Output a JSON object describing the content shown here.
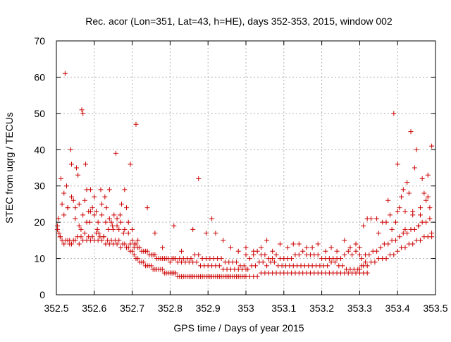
{
  "chart_data": {
    "type": "scatter",
    "title": "Rec. acor (Lon=351, Lat=43, h=HE), days 352-353, 2015, window 002",
    "xlabel": "GPS time / Days of year 2015",
    "ylabel": "STEC from uqrg / TECUs",
    "xlim": [
      352.5,
      353.5
    ],
    "ylim": [
      0,
      70
    ],
    "x_ticks": [
      352.5,
      352.6,
      352.7,
      352.8,
      352.9,
      353.0,
      353.1,
      353.2,
      353.3,
      353.4,
      353.5
    ],
    "x_tick_labels": [
      "352.5",
      "352.6",
      "352.7",
      "352.8",
      "352.9",
      "353",
      "353.1",
      "353.2",
      "353.3",
      "353.4",
      "353.5"
    ],
    "y_ticks": [
      0,
      10,
      20,
      30,
      40,
      50,
      60,
      70
    ],
    "y_tick_labels": [
      "0",
      "10",
      "20",
      "30",
      "40",
      "50",
      "60",
      "70"
    ],
    "grid": true,
    "marker": "+",
    "color": "#cc0000",
    "series": [
      {
        "x": [
          352.503,
          352.505,
          352.507,
          352.51,
          352.512,
          352.515,
          352.52,
          352.523,
          352.527,
          352.53,
          352.535,
          352.538,
          352.54,
          352.545,
          352.55,
          352.553,
          352.557,
          352.56,
          352.565,
          352.567,
          352.57,
          352.575,
          352.577,
          352.58,
          352.585,
          352.588,
          352.59,
          352.595,
          352.6,
          352.605,
          352.608,
          352.612,
          352.617,
          352.62,
          352.625,
          352.628,
          352.632,
          352.637,
          352.64,
          352.645,
          352.648,
          352.652,
          352.657,
          352.66,
          352.665,
          352.668,
          352.672,
          352.677,
          352.68,
          352.685,
          352.69,
          352.695,
          352.7,
          352.705,
          352.71,
          352.715
        ],
        "y": [
          19,
          21,
          17,
          16,
          32,
          25,
          22,
          61,
          30,
          24,
          15,
          40,
          36,
          26,
          24,
          35,
          33,
          19,
          18,
          51,
          50,
          26,
          36,
          29,
          23,
          20,
          29,
          24,
          27,
          23,
          18,
          17,
          29,
          25,
          16,
          27,
          24,
          18,
          29,
          20,
          19,
          22,
          39,
          21,
          18,
          22,
          25,
          17,
          29,
          24,
          20,
          36,
          18,
          13,
          47,
          15
        ]
      },
      {
        "x": [
          352.503,
          352.51,
          352.515,
          352.52,
          352.525,
          352.53,
          352.535,
          352.54,
          352.545,
          352.55,
          352.555,
          352.56,
          352.565,
          352.57,
          352.575,
          352.58,
          352.585,
          352.59,
          352.595,
          352.6,
          352.605,
          352.61,
          352.615,
          352.62,
          352.625,
          352.63,
          352.635,
          352.64,
          352.645,
          352.65,
          352.655,
          352.66,
          352.665,
          352.67,
          352.675,
          352.68,
          352.685,
          352.69,
          352.695,
          352.7,
          352.705,
          352.71,
          352.715,
          352.72,
          352.725,
          352.73,
          352.735,
          352.74,
          352.745,
          352.75,
          352.755,
          352.76,
          352.765,
          352.77,
          352.775,
          352.78,
          352.785,
          352.79,
          352.795,
          352.8,
          352.805,
          352.81,
          352.815,
          352.82,
          352.825,
          352.83,
          352.835,
          352.84,
          352.845,
          352.85,
          352.855,
          352.86,
          352.865,
          352.87,
          352.875,
          352.88,
          352.885,
          352.89,
          352.895,
          352.9,
          352.905,
          352.91,
          352.915,
          352.92,
          352.925,
          352.93,
          352.935,
          352.94,
          352.945,
          352.95,
          352.955,
          352.96,
          352.965,
          352.97,
          352.975,
          352.98,
          352.985,
          352.99,
          352.995,
          353.0
        ],
        "y": [
          18,
          16,
          15,
          14,
          15,
          15,
          14,
          14,
          15,
          15,
          16,
          14,
          16,
          15,
          17,
          15,
          16,
          15,
          16,
          15,
          17,
          15,
          16,
          15,
          16,
          14,
          15,
          14,
          15,
          14,
          15,
          14,
          15,
          13,
          14,
          14,
          13,
          13,
          12,
          12,
          11,
          10,
          10,
          9,
          9,
          9,
          8,
          8,
          8,
          8,
          7,
          7,
          7,
          7,
          7,
          7,
          6,
          6,
          6,
          6,
          6,
          6,
          6,
          5,
          5,
          5,
          5,
          5,
          5,
          5,
          5,
          5,
          5,
          5,
          5,
          5,
          5,
          5,
          5,
          5,
          5,
          5,
          5,
          5,
          5,
          5,
          5,
          5,
          5,
          5,
          5,
          5,
          5,
          5,
          5,
          5,
          5,
          5,
          5,
          5
        ]
      },
      {
        "x": [
          352.52,
          352.53,
          352.54,
          352.55,
          352.56,
          352.57,
          352.58,
          352.59,
          352.6,
          352.61,
          352.62,
          352.63,
          352.64,
          352.65,
          352.66,
          352.67,
          352.68,
          352.69,
          352.7,
          352.71,
          352.72,
          352.73,
          352.74,
          352.75,
          352.76,
          352.77,
          352.78,
          352.79,
          352.8,
          352.81,
          352.82,
          352.83,
          352.84,
          352.85,
          352.86,
          352.87,
          352.88,
          352.89,
          352.9,
          352.91,
          352.92,
          352.93,
          352.94,
          352.95,
          352.96,
          352.97,
          352.98,
          352.99,
          353.0
        ],
        "y": [
          28,
          24,
          27,
          21,
          25,
          22,
          20,
          23,
          22,
          20,
          22,
          20,
          21,
          18,
          19,
          20,
          18,
          17,
          15,
          14,
          13,
          12,
          12,
          11,
          11,
          10,
          10,
          10,
          9,
          10,
          9,
          9,
          9,
          9,
          9,
          9,
          8,
          8,
          8,
          8,
          8,
          8,
          7,
          7,
          7,
          7,
          7,
          7,
          7
        ]
      },
      {
        "x": [
          352.695,
          352.705,
          352.715,
          352.725,
          352.735,
          352.745,
          352.755,
          352.765,
          352.775,
          352.785,
          352.795,
          352.805,
          352.815,
          352.825,
          352.835,
          352.845,
          352.855,
          352.865,
          352.875,
          352.885,
          352.895,
          352.905,
          352.915,
          352.925,
          352.935,
          352.945,
          352.955,
          352.965,
          352.975,
          352.985,
          352.995
        ],
        "y": [
          14,
          14,
          13,
          12,
          12,
          11,
          11,
          10,
          10,
          10,
          10,
          10,
          10,
          10,
          10,
          10,
          10,
          11,
          11,
          10,
          10,
          10,
          10,
          10,
          10,
          9,
          9,
          9,
          9,
          8,
          8
        ]
      },
      {
        "x": [
          352.74,
          352.76,
          352.78,
          352.81,
          352.83,
          352.86,
          352.875,
          352.895,
          352.91,
          352.92,
          352.94,
          352.96,
          352.98,
          353.0
        ],
        "y": [
          24,
          17,
          13,
          19,
          12,
          18,
          32,
          17,
          21,
          17,
          15,
          13,
          12,
          11
        ]
      },
      {
        "x": [
          353.0,
          353.01,
          353.02,
          353.03,
          353.04,
          353.05,
          353.06,
          353.07,
          353.08,
          353.09,
          353.1,
          353.11,
          353.12,
          353.13,
          353.14,
          353.15,
          353.16,
          353.17,
          353.18,
          353.19,
          353.2,
          353.21,
          353.22,
          353.23,
          353.24,
          353.25,
          353.26,
          353.27,
          353.28,
          353.29,
          353.3,
          353.31,
          353.32
        ],
        "y": [
          5,
          5,
          5,
          5,
          6,
          6,
          6,
          6,
          6,
          6,
          6,
          6,
          6,
          6,
          6,
          6,
          6,
          6,
          6,
          6,
          6,
          6,
          6,
          6,
          6,
          6,
          6,
          6,
          6,
          6,
          6,
          6,
          6
        ]
      },
      {
        "x": [
          353.005,
          353.015,
          353.025,
          353.035,
          353.045,
          353.055,
          353.065,
          353.075,
          353.085,
          353.095,
          353.105,
          353.115,
          353.125,
          353.135,
          353.145,
          353.155,
          353.165,
          353.175,
          353.185,
          353.195,
          353.205,
          353.215,
          353.225,
          353.235,
          353.245,
          353.255,
          353.265,
          353.275,
          353.285,
          353.295,
          353.305,
          353.315
        ],
        "y": [
          7,
          8,
          8,
          9,
          9,
          8,
          9,
          9,
          8,
          8,
          8,
          8,
          8,
          8,
          8,
          8,
          8,
          8,
          8,
          8,
          8,
          8,
          9,
          9,
          8,
          8,
          7,
          7,
          7,
          7,
          8,
          9
        ]
      },
      {
        "x": [
          353.01,
          353.02,
          353.03,
          353.04,
          353.05,
          353.06,
          353.07,
          353.08,
          353.09,
          353.1,
          353.11,
          353.12,
          353.13,
          353.14,
          353.15,
          353.16,
          353.17,
          353.18,
          353.19,
          353.2,
          353.21,
          353.22,
          353.23,
          353.24,
          353.25,
          353.26,
          353.27,
          353.28,
          353.29,
          353.3
        ],
        "y": [
          10,
          11,
          12,
          11,
          11,
          10,
          10,
          11,
          10,
          10,
          10,
          10,
          11,
          11,
          12,
          11,
          11,
          11,
          11,
          10,
          10,
          10,
          10,
          10,
          10,
          11,
          12,
          11,
          12,
          11
        ]
      },
      {
        "x": [
          353.0,
          353.02,
          353.04,
          353.055,
          353.07,
          353.09,
          353.11,
          353.125,
          353.14,
          353.16,
          353.175,
          353.19,
          353.21,
          353.225,
          353.24,
          353.26,
          353.275,
          353.29,
          353.3
        ],
        "y": [
          13,
          12,
          13,
          15,
          12,
          14,
          13,
          14,
          14,
          13,
          13,
          14,
          12,
          13,
          12,
          15,
          13,
          14,
          13
        ]
      },
      {
        "x": [
          353.3,
          353.31,
          353.32,
          353.33,
          353.34,
          353.35,
          353.36,
          353.37,
          353.38,
          353.39,
          353.4,
          353.41,
          353.42,
          353.43,
          353.44,
          353.45,
          353.46,
          353.47,
          353.48,
          353.49
        ],
        "y": [
          7,
          8,
          8,
          9,
          9,
          10,
          10,
          10,
          11,
          11,
          12,
          13,
          13,
          14,
          14,
          15,
          15,
          16,
          16,
          16
        ]
      },
      {
        "x": [
          353.305,
          353.315,
          353.325,
          353.335,
          353.345,
          353.355,
          353.365,
          353.375,
          353.385,
          353.395,
          353.405,
          353.415,
          353.425,
          353.435,
          353.445,
          353.455,
          353.465,
          353.475,
          353.485
        ],
        "y": [
          10,
          11,
          11,
          12,
          12,
          13,
          14,
          14,
          15,
          15,
          16,
          17,
          17,
          18,
          18,
          19,
          20,
          20,
          21
        ]
      },
      {
        "x": [
          353.31,
          353.32,
          353.33,
          353.345,
          353.36,
          353.375,
          353.385,
          353.39,
          353.395,
          353.4,
          353.405,
          353.41,
          353.415,
          353.42,
          353.425,
          353.43,
          353.435,
          353.44,
          353.445,
          353.45,
          353.455,
          353.46,
          353.465,
          353.47,
          353.475,
          353.48,
          353.485,
          353.49
        ],
        "y": [
          19,
          21,
          21,
          21,
          20,
          26,
          18,
          50,
          20,
          36,
          24,
          27,
          29,
          23,
          31,
          28,
          45,
          22,
          35,
          40,
          19,
          22,
          32,
          28,
          26,
          33,
          24,
          41
        ]
      },
      {
        "x": [
          353.35,
          353.37,
          353.38,
          353.4,
          353.42,
          353.44,
          353.46,
          353.48,
          353.49
        ],
        "y": [
          17,
          20,
          22,
          23,
          18,
          23,
          24,
          27,
          17
        ]
      }
    ]
  }
}
